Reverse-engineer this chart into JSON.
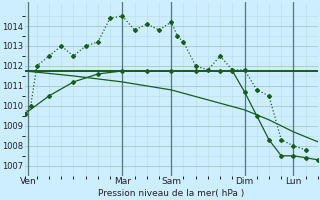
{
  "background_color": "#cceeff",
  "grid_major_color": "#aacccc",
  "grid_minor_color": "#bbdddd",
  "line_color": "#1a5c1a",
  "title": "Pression niveau de la mer( hPa )",
  "ylim": [
    1006.5,
    1015.2
  ],
  "yticks": [
    1007,
    1008,
    1009,
    1010,
    1011,
    1012,
    1013,
    1014
  ],
  "xlim": [
    0,
    24
  ],
  "day_labels": [
    "Ven",
    "Mar",
    "Sam",
    "Dim",
    "Lun"
  ],
  "day_positions": [
    0.3,
    8,
    12,
    18,
    22
  ],
  "day_vlines": [
    0.3,
    8,
    12,
    18,
    22
  ],
  "series1_x": [
    0,
    0.5,
    1,
    2,
    3,
    4,
    5,
    6,
    7,
    8,
    9,
    10,
    11,
    12,
    12.5,
    13,
    14,
    15,
    16,
    17,
    18,
    19,
    20,
    21,
    22,
    23
  ],
  "series1_y": [
    1009.6,
    1010.0,
    1012.0,
    1012.5,
    1013.0,
    1012.5,
    1013.0,
    1013.2,
    1014.4,
    1014.5,
    1013.8,
    1014.1,
    1013.8,
    1014.2,
    1013.5,
    1013.2,
    1012.0,
    1011.8,
    1012.5,
    1011.8,
    1011.8,
    1010.8,
    1010.5,
    1008.3,
    1008.0,
    1007.8
  ],
  "series2_x": [
    0,
    12,
    18,
    24
  ],
  "series2_y": [
    1011.75,
    1011.75,
    1011.75,
    1011.75
  ],
  "series3_x": [
    0,
    4,
    8,
    12,
    15,
    18,
    20,
    22,
    24
  ],
  "series3_y": [
    1011.75,
    1011.5,
    1011.2,
    1010.8,
    1010.3,
    1009.8,
    1009.3,
    1008.7,
    1008.2
  ],
  "series4_x": [
    0,
    2,
    4,
    6,
    8,
    10,
    12,
    14,
    16,
    17,
    18,
    19,
    20,
    21,
    22,
    23,
    24
  ],
  "series4_y": [
    1009.6,
    1010.5,
    1011.2,
    1011.6,
    1011.75,
    1011.75,
    1011.75,
    1011.75,
    1011.75,
    1011.75,
    1010.7,
    1009.5,
    1008.3,
    1007.5,
    1007.5,
    1007.4,
    1007.3
  ]
}
